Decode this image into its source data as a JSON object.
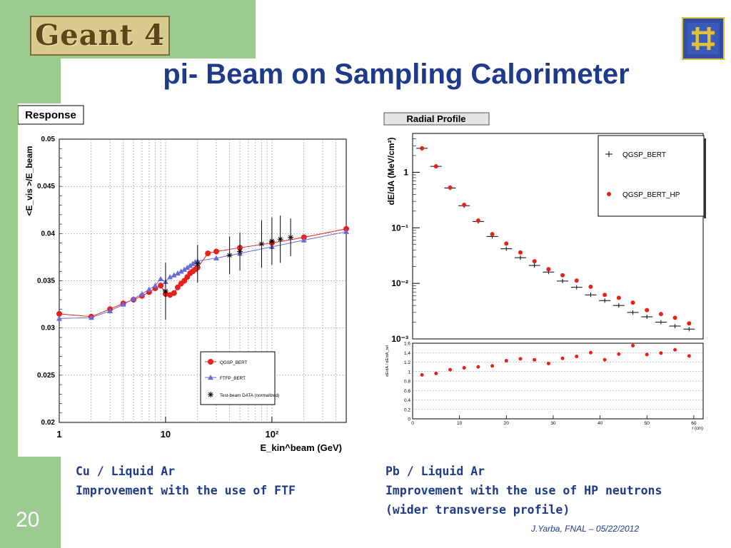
{
  "slide": {
    "logo_text": "Geant 4",
    "title": "pi- Beam on Sampling Calorimeter",
    "page_number": "20",
    "footer": "J.Yarba, FNAL – 05/22/2012",
    "logo_icon": "fermilab-logo-icon",
    "colors": {
      "sidebar": "#9ccb8f",
      "title": "#1f3a88"
    }
  },
  "left_caption": {
    "line1": "Cu / Liquid Ar",
    "line2": "Improvement with the use of FTF"
  },
  "right_caption": {
    "line1": "Pb / Liquid Ar",
    "line2": "Improvement with the use of HP neutrons",
    "line3": "(wider transverse profile)"
  },
  "chart_data": [
    {
      "type": "scatter",
      "title": "Response",
      "xscale": "log",
      "xlim": [
        1,
        500
      ],
      "ylim": [
        0.02,
        0.05
      ],
      "ylabel": "<E_vis >/E_beam",
      "xlabel": "E_kin^beam (GeV)",
      "xticks": [
        "1",
        "10",
        "10²"
      ],
      "yticks": [
        "0.02",
        "0.025",
        "0.03",
        "0.035",
        "0.04",
        "0.045",
        "0.05"
      ],
      "grid": true,
      "legend": {
        "placement": "bottom-right",
        "entries": [
          "QGSP_BERT",
          "FTFP_BERT",
          "Test-beam DATA (normalized)"
        ]
      },
      "series": [
        {
          "name": "QGSP_BERT",
          "color": "#e8201a",
          "marker": "circle",
          "x": [
            1,
            2,
            3,
            4,
            5,
            6,
            7,
            8,
            9,
            10,
            11,
            12,
            13,
            14,
            15,
            16,
            17,
            18,
            19,
            20,
            25,
            30,
            50,
            100,
            200,
            500
          ],
          "y": [
            0.0315,
            0.0312,
            0.032,
            0.0326,
            0.033,
            0.0334,
            0.0338,
            0.0342,
            0.0345,
            0.0336,
            0.0335,
            0.0337,
            0.0343,
            0.0347,
            0.035,
            0.0354,
            0.0358,
            0.036,
            0.0362,
            0.0364,
            0.0379,
            0.0381,
            0.0385,
            0.039,
            0.0396,
            0.0405
          ]
        },
        {
          "name": "FTFP_BERT",
          "color": "#6a6ad8",
          "marker": "triangle",
          "x": [
            1,
            2,
            3,
            4,
            5,
            6,
            7,
            8,
            9,
            10,
            11,
            12,
            13,
            14,
            15,
            16,
            17,
            18,
            19,
            20,
            30,
            50,
            100,
            200,
            500
          ],
          "y": [
            0.031,
            0.0311,
            0.0318,
            0.0325,
            0.0331,
            0.0336,
            0.0341,
            0.0345,
            0.0352,
            0.0349,
            0.0354,
            0.0356,
            0.0358,
            0.036,
            0.0362,
            0.0364,
            0.0366,
            0.0368,
            0.037,
            0.0371,
            0.0374,
            0.0379,
            0.0386,
            0.0393,
            0.0402
          ]
        },
        {
          "name": "Test-beam DATA (normalized)",
          "color": "#000000",
          "marker": "star",
          "x": [
            10,
            20,
            40,
            50,
            80,
            100,
            120,
            150
          ],
          "y": [
            0.0339,
            0.0368,
            0.0377,
            0.0381,
            0.0389,
            0.0392,
            0.0394,
            0.0396
          ],
          "err": [
            0.003,
            0.002,
            0.002,
            0.002,
            0.0025,
            0.0025,
            0.0025,
            0.002
          ]
        }
      ]
    },
    {
      "type": "scatter",
      "title": "Radial Profile",
      "yscale": "log",
      "xlim": [
        0,
        62
      ],
      "ylim": [
        0.001,
        5
      ],
      "ylabel": "dE/dA (MeV/cm²)",
      "xlabel": "r (cm)",
      "xticks": [
        "0",
        "10",
        "20",
        "30",
        "40",
        "50",
        "60"
      ],
      "yticks": [
        "1",
        "10⁻¹",
        "10⁻²",
        "10⁻³"
      ],
      "legend": {
        "placement": "top-right",
        "entries": [
          "QGSP_BERT",
          "QGSP_BERT_HP"
        ]
      },
      "series": [
        {
          "name": "QGSP_BERT",
          "color": "#000000",
          "marker": "plus",
          "x": [
            2,
            5,
            8,
            11,
            14,
            17,
            20,
            23,
            26,
            29,
            32,
            35,
            38,
            41,
            44,
            47,
            50,
            53,
            56,
            59
          ],
          "y": [
            2.7,
            1.28,
            0.52,
            0.25,
            0.13,
            0.07,
            0.042,
            0.029,
            0.021,
            0.016,
            0.011,
            0.0085,
            0.0062,
            0.0049,
            0.004,
            0.003,
            0.0025,
            0.002,
            0.0017,
            0.0015
          ]
        },
        {
          "name": "QGSP_BERT_HP",
          "color": "#e8201a",
          "marker": "circle",
          "x": [
            2,
            5,
            8,
            11,
            14,
            17,
            20,
            23,
            26,
            29,
            32,
            35,
            38,
            41,
            44,
            47,
            50,
            53,
            56,
            59
          ],
          "y": [
            2.7,
            1.28,
            0.53,
            0.26,
            0.135,
            0.077,
            0.052,
            0.036,
            0.025,
            0.018,
            0.014,
            0.0112,
            0.0087,
            0.0062,
            0.0055,
            0.0045,
            0.0033,
            0.0028,
            0.0024,
            0.0019
          ]
        }
      ],
      "ratio": {
        "ylabel": "dE/dA / dE/dA_ref",
        "ylim": [
          0,
          1.6
        ],
        "yticks": [
          "0",
          "0.2",
          "0.4",
          "0.6",
          "0.8",
          "1",
          "1.2",
          "1.4",
          "1.6"
        ],
        "x": [
          2,
          5,
          8,
          11,
          14,
          17,
          20,
          23,
          26,
          29,
          32,
          35,
          38,
          41,
          44,
          47,
          50,
          53,
          56,
          59
        ],
        "y": [
          0.93,
          0.96,
          1.04,
          1.08,
          1.1,
          1.12,
          1.23,
          1.27,
          1.25,
          1.17,
          1.28,
          1.32,
          1.4,
          1.25,
          1.37,
          1.55,
          1.36,
          1.39,
          1.46,
          1.33
        ]
      }
    }
  ]
}
